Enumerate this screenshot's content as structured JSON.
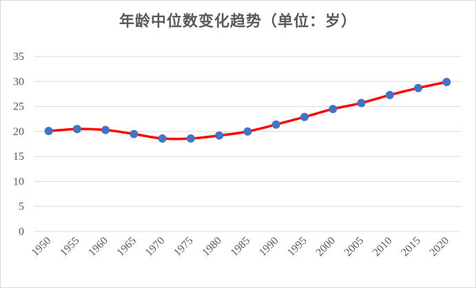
{
  "chart_data": {
    "type": "line",
    "title": "年龄中位数变化趋势（单位：岁）",
    "x": [
      "1950",
      "1955",
      "1960",
      "1965",
      "1970",
      "1975",
      "1980",
      "1985",
      "1990",
      "1995",
      "2000",
      "2005",
      "2010",
      "2015",
      "2020"
    ],
    "series": [
      {
        "values": [
          20.1,
          20.5,
          20.3,
          19.5,
          18.6,
          18.6,
          19.2,
          20.0,
          21.4,
          22.9,
          24.5,
          25.7,
          27.3,
          28.7,
          29.9
        ]
      }
    ],
    "ylim": [
      0,
      35
    ],
    "yticks": [
      "0",
      "5",
      "10",
      "15",
      "20",
      "25",
      "30",
      "35"
    ],
    "grid": true,
    "line_color": "#ff0000",
    "marker_color": "#4472c4"
  }
}
